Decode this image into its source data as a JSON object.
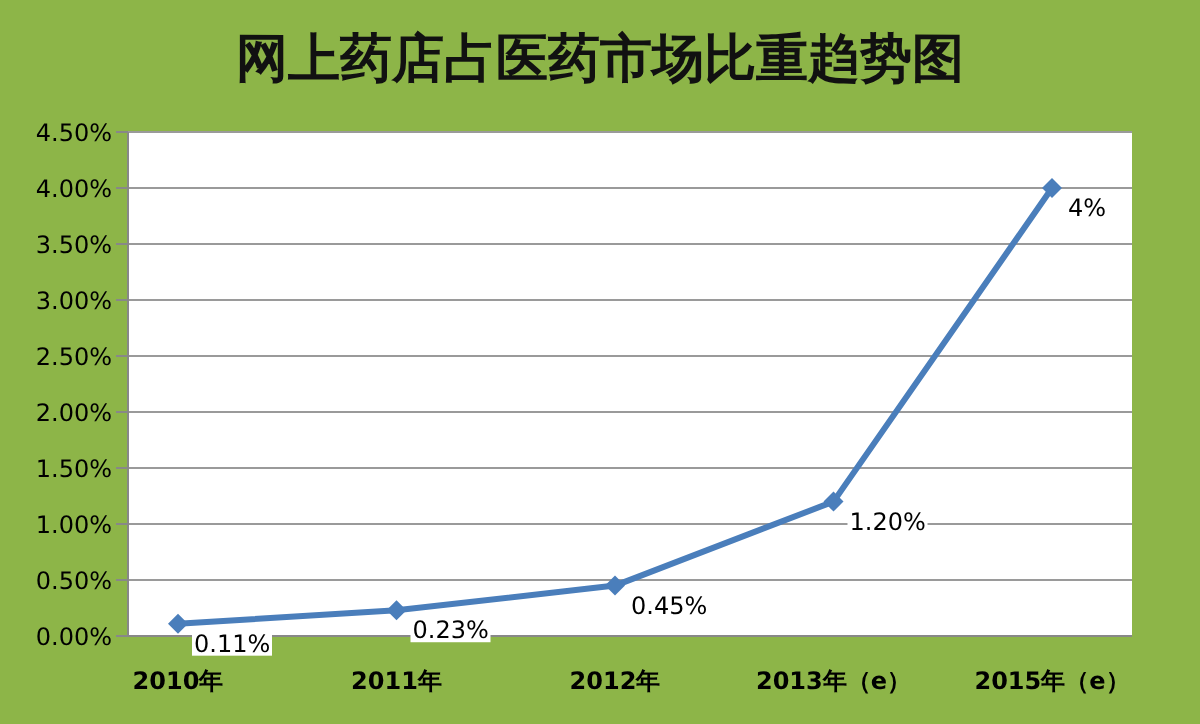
{
  "chart_data": {
    "type": "line",
    "title": "网上药店占医药市场比重趋势图",
    "categories": [
      "2010年",
      "2011年",
      "2012年",
      "2013年（e）",
      "2015年（e）"
    ],
    "series": [
      {
        "color": "#4a7ebb",
        "values": [
          0.11,
          0.23,
          0.45,
          1.2,
          4
        ],
        "value_labels": [
          "0.11%",
          "0.23%",
          "0.45%",
          "1.20%",
          "4%"
        ]
      }
    ],
    "ylim": [
      0,
      4.5
    ],
    "yticks": [
      {
        "value": 0,
        "label": "0.00%"
      },
      {
        "value": 0.5,
        "label": "0.50%"
      },
      {
        "value": 1,
        "label": "1.00%"
      },
      {
        "value": 1.5,
        "label": "1.50%"
      },
      {
        "value": 2,
        "label": "2.00%"
      },
      {
        "value": 2.5,
        "label": "2.50%"
      },
      {
        "value": 3,
        "label": "3.00%"
      },
      {
        "value": 3.5,
        "label": "3.50%"
      },
      {
        "value": 4,
        "label": "4.00%"
      },
      {
        "value": 4.5,
        "label": "4.50%"
      }
    ],
    "grid": "y",
    "marker": "diamond",
    "line_style": "solid"
  }
}
